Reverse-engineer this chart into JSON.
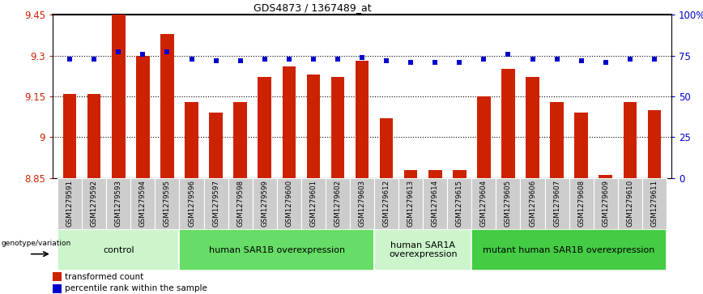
{
  "title": "GDS4873 / 1367489_at",
  "samples": [
    "GSM1279591",
    "GSM1279592",
    "GSM1279593",
    "GSM1279594",
    "GSM1279595",
    "GSM1279596",
    "GSM1279597",
    "GSM1279598",
    "GSM1279599",
    "GSM1279600",
    "GSM1279601",
    "GSM1279602",
    "GSM1279603",
    "GSM1279612",
    "GSM1279613",
    "GSM1279614",
    "GSM1279615",
    "GSM1279604",
    "GSM1279605",
    "GSM1279606",
    "GSM1279607",
    "GSM1279608",
    "GSM1279609",
    "GSM1279610",
    "GSM1279611"
  ],
  "bar_values": [
    9.16,
    9.16,
    9.45,
    9.3,
    9.38,
    9.13,
    9.09,
    9.13,
    9.22,
    9.26,
    9.23,
    9.22,
    9.28,
    9.07,
    8.88,
    8.88,
    8.88,
    9.15,
    9.25,
    9.22,
    9.13,
    9.09,
    8.86,
    9.13,
    9.1
  ],
  "percentile_values": [
    73,
    73,
    77,
    76,
    77,
    73,
    72,
    72,
    73,
    73,
    73,
    73,
    74,
    72,
    71,
    71,
    71,
    73,
    76,
    73,
    73,
    72,
    71,
    73,
    73
  ],
  "groups": [
    {
      "label": "control",
      "start": 0,
      "end": 5,
      "color": "#ccf5cc"
    },
    {
      "label": "human SAR1B overexpression",
      "start": 5,
      "end": 13,
      "color": "#66dd66"
    },
    {
      "label": "human SAR1A\noverexpression",
      "start": 13,
      "end": 17,
      "color": "#ccf5cc"
    },
    {
      "label": "mutant human SAR1B overexpression",
      "start": 17,
      "end": 25,
      "color": "#44cc44"
    }
  ],
  "ylim_left": [
    8.85,
    9.45
  ],
  "ylim_right": [
    0,
    100
  ],
  "yticks_left": [
    8.85,
    9.0,
    9.15,
    9.3,
    9.45
  ],
  "ytick_labels_left": [
    "8.85",
    "9",
    "9.15",
    "9.3",
    "9.45"
  ],
  "yticks_right": [
    0,
    25,
    50,
    75,
    100
  ],
  "ytick_labels_right": [
    "0",
    "25",
    "50",
    "75",
    "100%"
  ],
  "bar_color": "#cc2200",
  "dot_color": "#0000cc",
  "background_color": "#ffffff",
  "label_bg_color": "#cccccc",
  "genotype_label": "genotype/variation"
}
